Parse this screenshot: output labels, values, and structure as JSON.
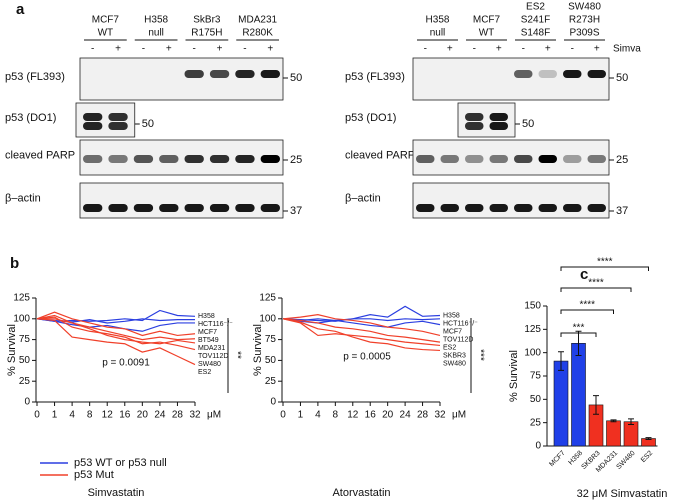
{
  "panel_a": {
    "label": "a",
    "blots": [
      {
        "cell_lines": [
          [
            "MCF7",
            "WT"
          ],
          [
            "H358",
            "null"
          ],
          [
            "SkBr3",
            "R175H"
          ],
          [
            "MDA231",
            "R280K"
          ]
        ],
        "lanes": [
          "-",
          "+"
        ],
        "rows": [
          {
            "label": "p53 (FL393)",
            "marker": 50
          },
          {
            "label": "p53 (DO1)",
            "marker": 50
          },
          {
            "label": "cleaved PARP",
            "marker": 25
          },
          {
            "label": "β–actin",
            "marker": 37
          }
        ]
      },
      {
        "cell_lines": [
          [
            "H358",
            "null"
          ],
          [
            "MCF7",
            "WT"
          ],
          [
            "ES2",
            "S241F",
            "S148F"
          ],
          [
            "SW480",
            "R273H",
            "P309S"
          ]
        ],
        "lanes": [
          "-",
          "+"
        ],
        "treatment": "Simva",
        "rows": [
          {
            "label": "p53 (FL393)",
            "marker": 50
          },
          {
            "label": "p53 (DO1)",
            "marker": 50
          },
          {
            "label": "cleaved PARP",
            "marker": 25
          },
          {
            "label": "β–actin",
            "marker": 37
          }
        ]
      }
    ]
  },
  "panel_b_label": "b",
  "panel_c_label": "c",
  "chart_data": [
    {
      "type": "line",
      "x_label": "Simvastatin",
      "x_unit": "μM",
      "y_label": "% Survival",
      "categories": [
        "0",
        "1",
        "4",
        "8",
        "12",
        "16",
        "20",
        "24",
        "28",
        "32"
      ],
      "ylim": [
        0,
        125
      ],
      "yticks": [
        0,
        25,
        50,
        75,
        100,
        125
      ],
      "series": [
        {
          "name": "H358",
          "color": "#2b3fe0",
          "values": [
            100,
            97,
            98,
            97,
            98,
            100,
            98,
            110,
            104,
            103
          ]
        },
        {
          "name": "HCT116⁻/⁻",
          "color": "#2b3fe0",
          "values": [
            100,
            98,
            96,
            99,
            95,
            97,
            100,
            98,
            99,
            99
          ]
        },
        {
          "name": "MCF7",
          "color": "#2b3fe0",
          "values": [
            100,
            97,
            93,
            90,
            92,
            88,
            85,
            92,
            95,
            95
          ]
        },
        {
          "name": "BT549",
          "color": "#f0402a",
          "values": [
            100,
            108,
            100,
            95,
            90,
            88,
            80,
            85,
            80,
            82
          ]
        },
        {
          "name": "MDA231",
          "color": "#f0402a",
          "values": [
            100,
            104,
            95,
            90,
            85,
            80,
            75,
            78,
            75,
            76
          ]
        },
        {
          "name": "TOV112D",
          "color": "#f0402a",
          "values": [
            100,
            100,
            95,
            88,
            80,
            75,
            72,
            70,
            74,
            71
          ]
        },
        {
          "name": "SW480",
          "color": "#f0402a",
          "values": [
            100,
            102,
            90,
            85,
            82,
            78,
            70,
            72,
            68,
            63
          ]
        },
        {
          "name": "ES2",
          "color": "#f0402a",
          "values": [
            100,
            98,
            78,
            75,
            72,
            70,
            60,
            65,
            55,
            45
          ]
        }
      ],
      "legend": [
        {
          "name": "p53 WT or p53 null",
          "color": "#2b3fe0"
        },
        {
          "name": "p53 Mut",
          "color": "#f0402a"
        }
      ],
      "annotation": "p = 0.0091",
      "significance": "**"
    },
    {
      "type": "line",
      "x_label": "Atorvastatin",
      "x_unit": "μM",
      "y_label": "% Survival",
      "categories": [
        "0",
        "1",
        "4",
        "8",
        "12",
        "16",
        "20",
        "24",
        "28",
        "32"
      ],
      "ylim": [
        0,
        125
      ],
      "yticks": [
        0,
        25,
        50,
        75,
        100,
        125
      ],
      "series": [
        {
          "name": "H358",
          "color": "#2b3fe0",
          "values": [
            100,
            98,
            100,
            98,
            100,
            105,
            102,
            115,
            103,
            104
          ]
        },
        {
          "name": "HCT116⁻/⁻",
          "color": "#2b3fe0",
          "values": [
            100,
            99,
            98,
            97,
            100,
            100,
            98,
            100,
            99,
            100
          ]
        },
        {
          "name": "MCF7",
          "color": "#2b3fe0",
          "values": [
            100,
            97,
            95,
            98,
            95,
            92,
            90,
            95,
            97,
            93
          ]
        },
        {
          "name": "TOV112D",
          "color": "#f0402a",
          "values": [
            100,
            102,
            105,
            100,
            98,
            95,
            90,
            88,
            85,
            80
          ]
        },
        {
          "name": "ES2",
          "color": "#f0402a",
          "values": [
            100,
            98,
            95,
            90,
            88,
            85,
            80,
            78,
            75,
            72
          ]
        },
        {
          "name": "SKBR3",
          "color": "#f0402a",
          "values": [
            100,
            95,
            80,
            82,
            80,
            78,
            75,
            72,
            70,
            68
          ]
        },
        {
          "name": "SW480",
          "color": "#f0402a",
          "values": [
            100,
            96,
            88,
            85,
            78,
            72,
            70,
            65,
            63,
            62
          ]
        }
      ],
      "annotation": "p = 0.0005",
      "significance": "***"
    },
    {
      "type": "bar",
      "x_label": "32 μM Simvastatin",
      "y_label": "% Survival",
      "categories": [
        "MCF7",
        "H358",
        "SKBR3",
        "MDA231",
        "SW480",
        "ES2"
      ],
      "values": [
        91,
        110,
        44,
        27,
        26,
        8
      ],
      "errors": [
        10,
        13,
        10,
        1,
        3,
        1
      ],
      "colors": [
        "#2040e8",
        "#2040e8",
        "#f03020",
        "#f03020",
        "#f03020",
        "#f03020"
      ],
      "ylim": [
        0,
        150
      ],
      "yticks": [
        0,
        25,
        50,
        75,
        100,
        125,
        150
      ],
      "significance": [
        "***",
        "****",
        "****",
        "****"
      ]
    }
  ]
}
